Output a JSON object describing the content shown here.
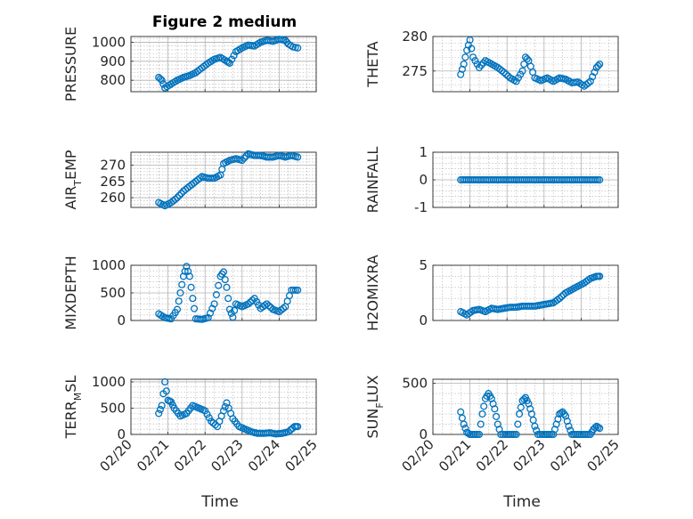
{
  "figure": {
    "title": "Figure 2 medium",
    "marker_color": "#0072BD",
    "axis_color": "#262626",
    "grid_color": "#b0b0b0"
  },
  "chart_data": [
    {
      "id": "pressure",
      "type": "scatter",
      "ylabel": "PRESSURE",
      "ylabel_sub": "",
      "ylabel_tail": "",
      "ylim": [
        740,
        1030
      ],
      "yticks": [
        800,
        900,
        1000
      ],
      "xlim": [
        "02/20",
        "02/25"
      ],
      "xticks": [],
      "grid": "minor",
      "x": [
        "02/20 18:00",
        "02/20 20:00",
        "02/20 22:00",
        "02/21 02:00",
        "02/21 06:00",
        "02/21 10:00",
        "02/21 14:00",
        "02/21 18:00",
        "02/21 22:00",
        "02/22 02:00",
        "02/22 06:00",
        "02/22 10:00",
        "02/22 14:00",
        "02/22 16:00",
        "02/22 20:00",
        "02/23 00:00",
        "02/23 04:00",
        "02/23 08:00",
        "02/23 12:00",
        "02/23 16:00",
        "02/23 20:00",
        "02/24 00:00",
        "02/24 04:00",
        "02/24 06:00",
        "02/24 09:00",
        "02/24 12:00"
      ],
      "y": [
        815,
        800,
        760,
        780,
        800,
        815,
        825,
        840,
        865,
        890,
        910,
        920,
        900,
        890,
        950,
        970,
        985,
        980,
        1000,
        1010,
        1005,
        1015,
        1010,
        990,
        975,
        970
      ]
    },
    {
      "id": "theta",
      "type": "scatter",
      "ylabel": "THETA",
      "ylabel_sub": "",
      "ylabel_tail": "",
      "ylim": [
        272,
        280
      ],
      "yticks": [
        275,
        280
      ],
      "xlim": [
        "02/20",
        "02/25"
      ],
      "xticks": [],
      "grid": "minor",
      "x": [
        "02/20 18:00",
        "02/20 20:00",
        "02/20 22:00",
        "02/21 00:00",
        "02/21 02:00",
        "02/21 06:00",
        "02/21 10:00",
        "02/21 14:00",
        "02/21 18:00",
        "02/21 22:00",
        "02/22 02:00",
        "02/22 06:00",
        "02/22 10:00",
        "02/22 12:00",
        "02/22 14:00",
        "02/22 18:00",
        "02/22 22:00",
        "02/23 02:00",
        "02/23 06:00",
        "02/23 10:00",
        "02/23 14:00",
        "02/23 18:00",
        "02/23 22:00",
        "02/24 02:00",
        "02/24 06:00",
        "02/24 10:00",
        "02/24 12:00"
      ],
      "y": [
        274.5,
        276,
        278,
        279.5,
        277,
        275.5,
        276.5,
        276,
        275.5,
        274.8,
        274,
        273.5,
        275,
        277,
        276.5,
        274,
        273.6,
        274,
        273.5,
        274,
        273.8,
        273.3,
        273.4,
        272.8,
        273.5,
        275.5,
        276
      ]
    },
    {
      "id": "air_temp",
      "type": "scatter",
      "ylabel": "AIR",
      "ylabel_sub": "T",
      "ylabel_tail": "EMP",
      "ylim": [
        257,
        274
      ],
      "yticks": [
        260,
        265,
        270
      ],
      "xlim": [
        "02/20",
        "02/25"
      ],
      "xticks": [],
      "grid": "minor",
      "x": [
        "02/20 18:00",
        "02/20 22:00",
        "02/21 02:00",
        "02/21 06:00",
        "02/21 10:00",
        "02/21 14:00",
        "02/21 18:00",
        "02/21 22:00",
        "02/22 02:00",
        "02/22 06:00",
        "02/22 10:00",
        "02/22 12:00",
        "02/22 16:00",
        "02/22 20:00",
        "02/23 00:00",
        "02/23 04:00",
        "02/23 08:00",
        "02/23 12:00",
        "02/23 16:00",
        "02/23 20:00",
        "02/24 00:00",
        "02/24 04:00",
        "02/24 08:00",
        "02/24 12:00"
      ],
      "y": [
        258.5,
        257.5,
        258.5,
        260,
        262,
        263.5,
        265,
        266.5,
        266,
        266,
        267,
        270.5,
        271.5,
        272,
        271.5,
        273.5,
        273,
        273,
        272.5,
        272.5,
        273,
        272.5,
        273,
        272.5
      ]
    },
    {
      "id": "rainfall",
      "type": "scatter",
      "ylabel": "RAINFALL",
      "ylabel_sub": "",
      "ylabel_tail": "",
      "ylim": [
        -1,
        1
      ],
      "yticks": [
        -1,
        0,
        1
      ],
      "xlim": [
        "02/20",
        "02/25"
      ],
      "xticks": [],
      "grid": "minor",
      "x": [
        "02/20 18:00",
        "02/24 12:00"
      ],
      "y": [
        0,
        0
      ]
    },
    {
      "id": "mixdepth",
      "type": "scatter",
      "ylabel": "MIXDEPTH",
      "ylabel_sub": "",
      "ylabel_tail": "",
      "ylim": [
        0,
        1000
      ],
      "yticks": [
        0,
        500,
        1000
      ],
      "xlim": [
        "02/20",
        "02/25"
      ],
      "xticks": [],
      "grid": "minor",
      "x": [
        "02/20 18:00",
        "02/20 22:00",
        "02/21 02:00",
        "02/21 06:00",
        "02/21 08:00",
        "02/21 10:00",
        "02/21 12:00",
        "02/21 14:00",
        "02/21 16:00",
        "02/21 18:00",
        "02/21 22:00",
        "02/22 02:00",
        "02/22 06:00",
        "02/22 10:00",
        "02/22 12:00",
        "02/22 14:00",
        "02/22 16:00",
        "02/22 18:00",
        "02/22 20:00",
        "02/23 00:00",
        "02/23 04:00",
        "02/23 08:00",
        "02/23 12:00",
        "02/23 16:00",
        "02/23 20:00",
        "02/24 00:00",
        "02/24 04:00",
        "02/24 08:00",
        "02/24 12:00"
      ],
      "y": [
        120,
        50,
        30,
        200,
        500,
        800,
        980,
        800,
        400,
        30,
        20,
        50,
        300,
        800,
        880,
        600,
        200,
        60,
        300,
        250,
        300,
        400,
        220,
        300,
        200,
        160,
        250,
        550,
        550
      ]
    },
    {
      "id": "h2omixra",
      "type": "scatter",
      "ylabel": "H2OMIXRA",
      "ylabel_sub": "",
      "ylabel_tail": "",
      "ylim": [
        0,
        5
      ],
      "yticks": [
        0,
        5
      ],
      "xlim": [
        "02/20",
        "02/25"
      ],
      "xticks": [],
      "grid": "minor",
      "x": [
        "02/20 18:00",
        "02/20 22:00",
        "02/21 02:00",
        "02/21 06:00",
        "02/21 10:00",
        "02/21 14:00",
        "02/21 18:00",
        "02/21 22:00",
        "02/22 02:00",
        "02/22 06:00",
        "02/22 10:00",
        "02/22 14:00",
        "02/22 18:00",
        "02/22 22:00",
        "02/23 02:00",
        "02/23 06:00",
        "02/23 10:00",
        "02/23 14:00",
        "02/23 18:00",
        "02/23 22:00",
        "02/24 02:00",
        "02/24 06:00",
        "02/24 10:00",
        "02/24 12:00"
      ],
      "y": [
        0.8,
        0.5,
        0.9,
        1.0,
        0.8,
        1.1,
        1.0,
        1.1,
        1.2,
        1.2,
        1.3,
        1.3,
        1.3,
        1.4,
        1.5,
        1.6,
        2.0,
        2.5,
        2.8,
        3.1,
        3.4,
        3.8,
        4.0,
        4.0
      ]
    },
    {
      "id": "terr_msl",
      "type": "scatter",
      "ylabel": "TERR",
      "ylabel_sub": "M",
      "ylabel_tail": "SL",
      "ylim": [
        0,
        1050
      ],
      "yticks": [
        0,
        500,
        1000
      ],
      "xlim": [
        "02/20",
        "02/25"
      ],
      "xticks": [
        "02/20",
        "02/21",
        "02/22",
        "02/23",
        "02/24",
        "02/25"
      ],
      "xlabel": "Time",
      "grid": "minor",
      "x": [
        "02/20 18:00",
        "02/20 20:00",
        "02/20 22:00",
        "02/21 00:00",
        "02/21 02:00",
        "02/21 04:00",
        "02/21 08:00",
        "02/21 12:00",
        "02/21 16:00",
        "02/21 20:00",
        "02/22 00:00",
        "02/22 04:00",
        "02/22 08:00",
        "02/22 12:00",
        "02/22 14:00",
        "02/22 18:00",
        "02/22 22:00",
        "02/23 02:00",
        "02/23 06:00",
        "02/23 10:00",
        "02/23 14:00",
        "02/23 18:00",
        "02/23 22:00",
        "02/24 02:00",
        "02/24 06:00",
        "02/24 10:00",
        "02/24 12:00"
      ],
      "y": [
        400,
        550,
        1000,
        650,
        620,
        500,
        350,
        400,
        550,
        500,
        450,
        250,
        150,
        450,
        600,
        300,
        150,
        100,
        50,
        20,
        20,
        30,
        10,
        20,
        50,
        150,
        150
      ]
    },
    {
      "id": "sun_flux",
      "type": "scatter",
      "ylabel": "SUN",
      "ylabel_sub": "F",
      "ylabel_tail": "LUX",
      "ylim": [
        0,
        540
      ],
      "yticks": [
        0,
        500
      ],
      "xlim": [
        "02/20",
        "02/25"
      ],
      "xticks": [
        "02/20",
        "02/21",
        "02/22",
        "02/23",
        "02/24",
        "02/25"
      ],
      "xlabel": "Time",
      "grid": "minor",
      "x": [
        "02/20 18:00",
        "02/20 20:00",
        "02/20 22:00",
        "02/21 00:00",
        "02/21 06:00",
        "02/21 08:00",
        "02/21 10:00",
        "02/21 12:00",
        "02/21 14:00",
        "02/21 16:00",
        "02/21 18:00",
        "02/21 20:00",
        "02/22 00:00",
        "02/22 06:00",
        "02/22 08:00",
        "02/22 10:00",
        "02/22 12:00",
        "02/22 14:00",
        "02/22 16:00",
        "02/22 18:00",
        "02/22 20:00",
        "02/23 00:00",
        "02/23 06:00",
        "02/23 08:00",
        "02/23 10:00",
        "02/23 12:00",
        "02/23 14:00",
        "02/23 16:00",
        "02/23 18:00",
        "02/24 00:00",
        "02/24 06:00",
        "02/24 08:00",
        "02/24 10:00",
        "02/24 12:00"
      ],
      "y": [
        220,
        100,
        20,
        0,
        0,
        200,
        350,
        400,
        350,
        250,
        100,
        0,
        0,
        0,
        200,
        330,
        360,
        300,
        200,
        80,
        0,
        0,
        0,
        100,
        200,
        220,
        180,
        80,
        0,
        0,
        0,
        50,
        80,
        60
      ]
    }
  ]
}
